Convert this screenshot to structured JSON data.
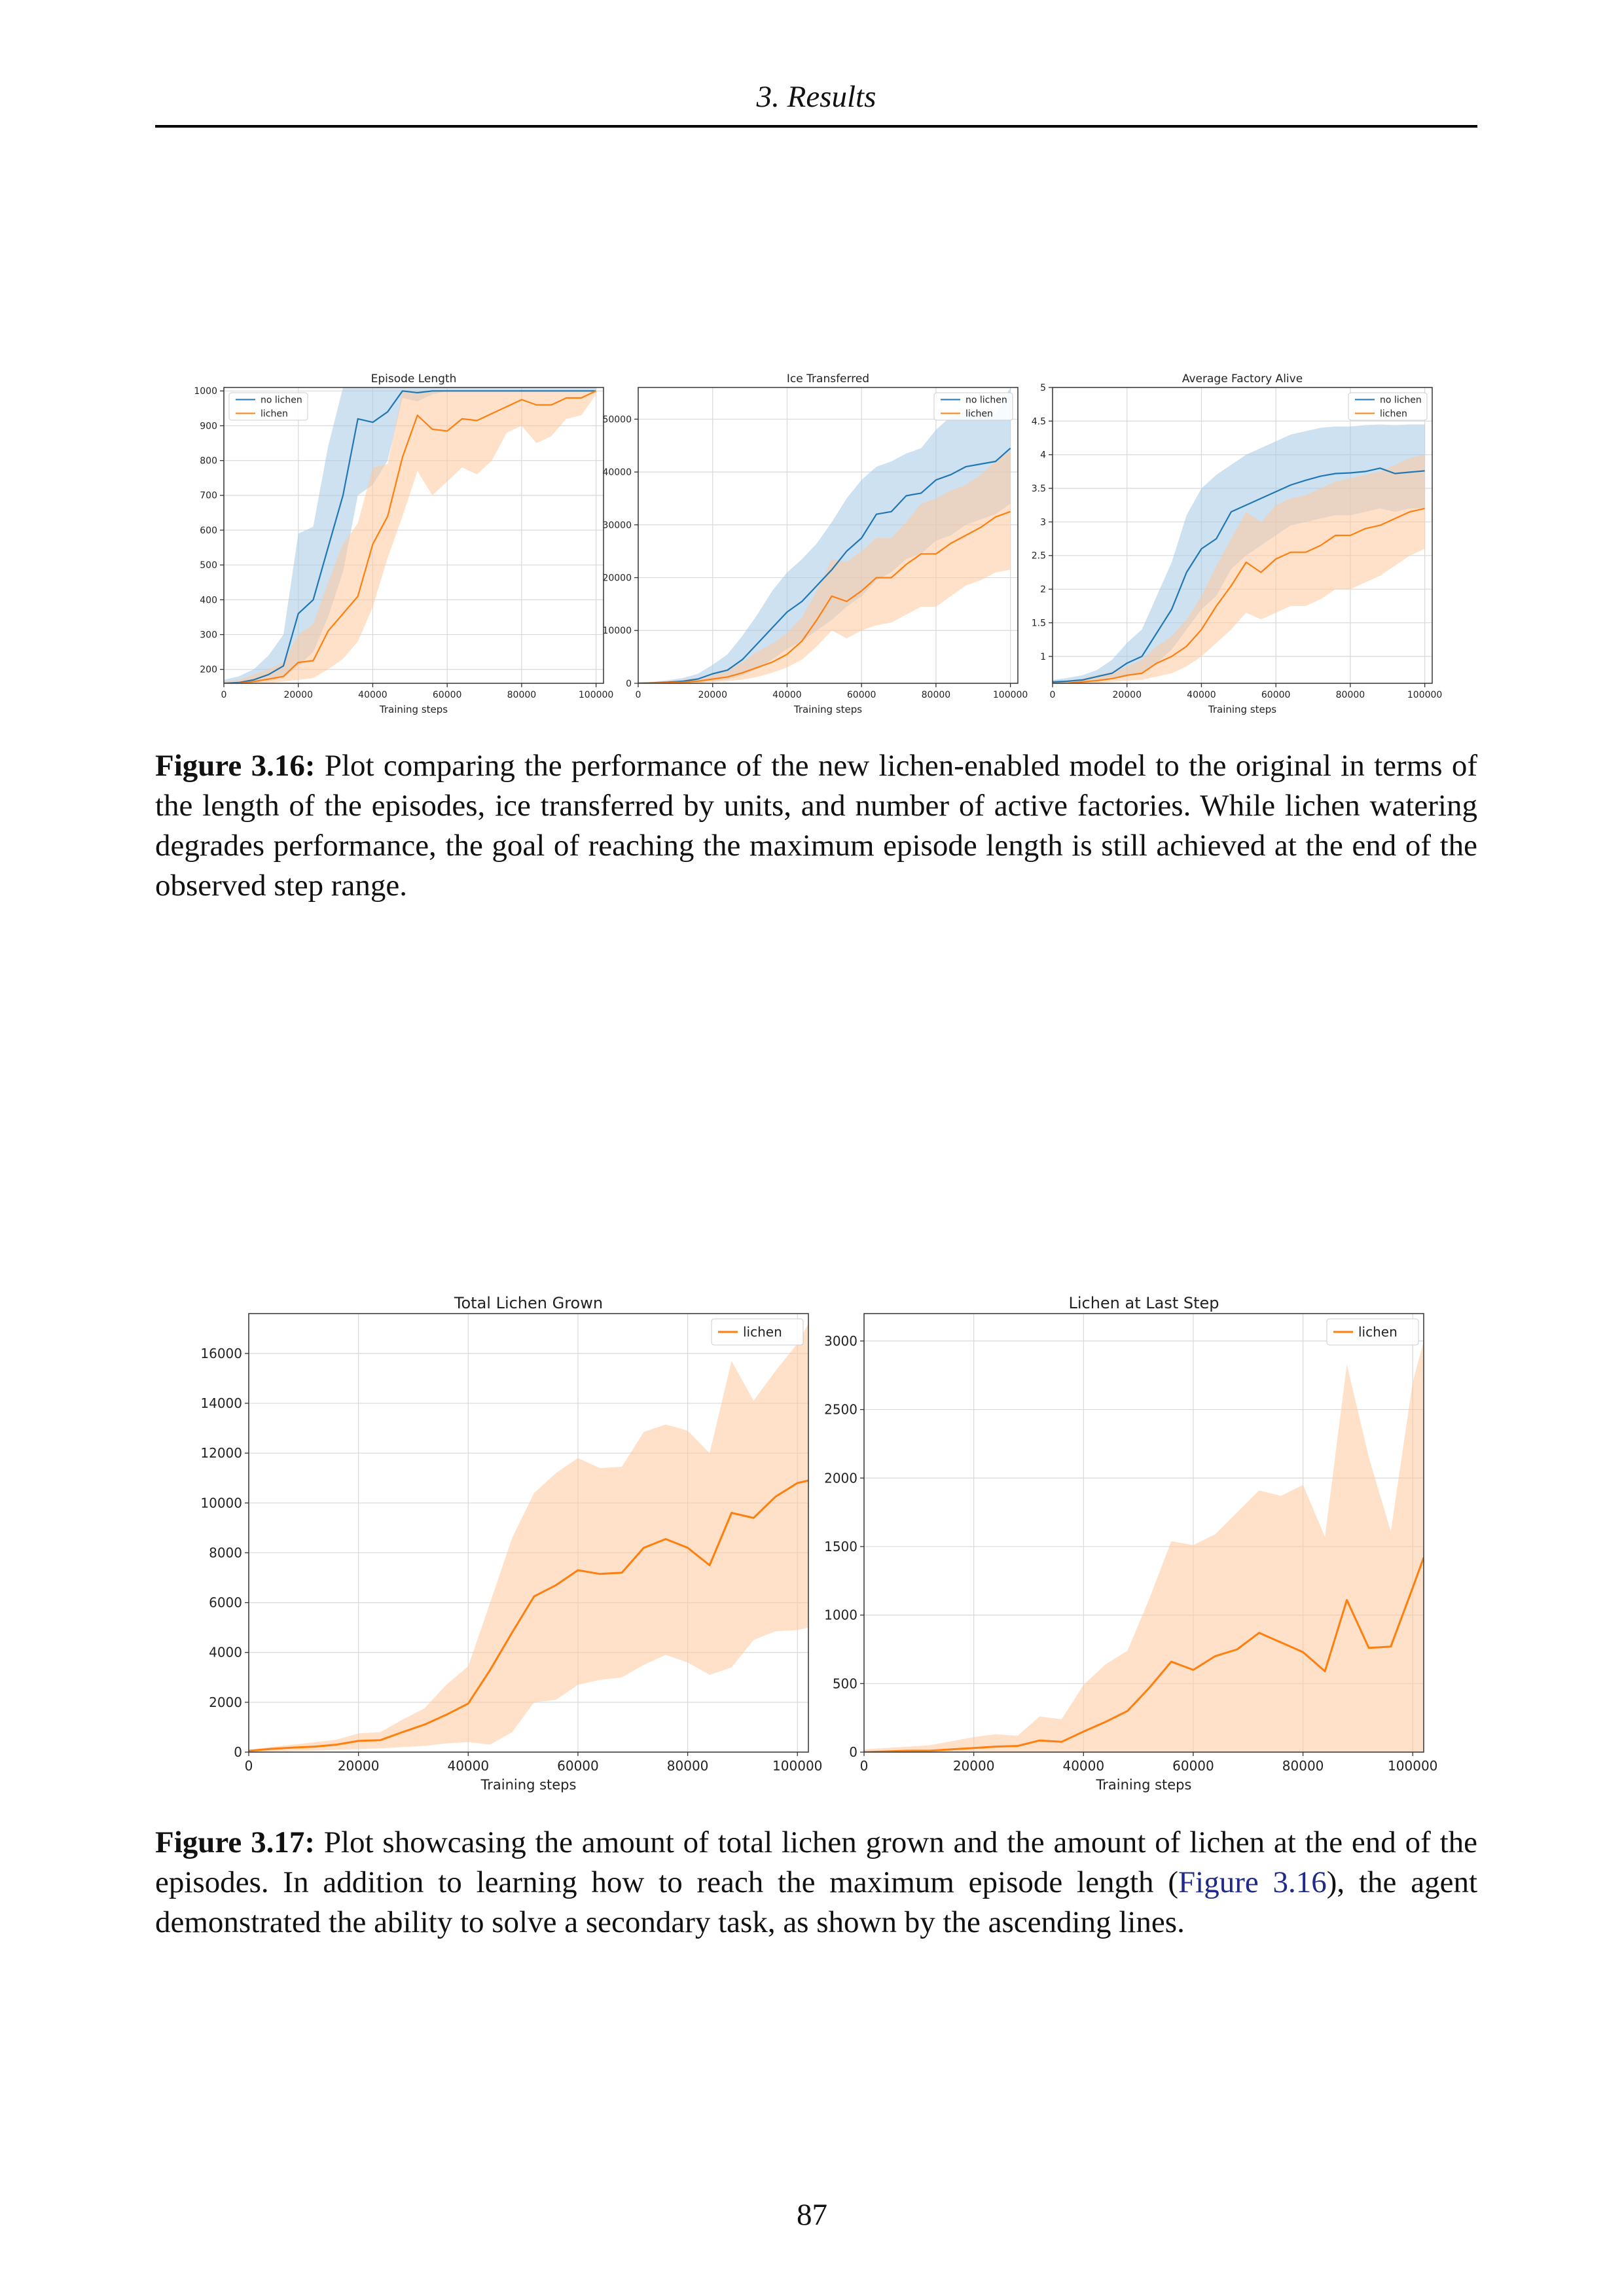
{
  "header": {
    "running_head": "3. Results"
  },
  "figures": [
    {
      "caption_label": "Figure 3.16:",
      "caption_text": "Plot comparing the performance of the new lichen-enabled model to the original in terms of the length of the episodes, ice transferred by units, and number of active factories. While lichen watering degrades performance, the goal of reaching the maximum episode length is still achieved at the end of the observed step range."
    },
    {
      "caption_label": "Figure 3.17:",
      "caption_text_before": "Plot showcasing the amount of total lichen grown and the amount of lichen at the end of the episodes. In addition to learning how to reach the maximum episode length (",
      "caption_ref": "Figure 3.16",
      "caption_text_after": "), the agent demonstrated the ability to solve a secondary task, as shown by the ascending lines."
    }
  ],
  "colors": {
    "no_lichen": "#1f77b4",
    "lichen": "#ff7f0e",
    "no_lichen_band": "#a6c8e3",
    "lichen_band": "#ffc99e"
  },
  "chart_data": [
    {
      "type": "line",
      "title": "Episode Length",
      "xlabel": "Training steps",
      "ylabel": "",
      "xlim": [
        0,
        102000
      ],
      "ylim": [
        160,
        1010
      ],
      "xticks": [
        0,
        20000,
        40000,
        60000,
        80000,
        100000
      ],
      "yticks": [
        200,
        300,
        400,
        500,
        600,
        700,
        800,
        900,
        1000
      ],
      "legend": "top-left",
      "grid": true,
      "x": [
        0,
        4000,
        8000,
        12000,
        16000,
        20000,
        24000,
        28000,
        32000,
        36000,
        40000,
        44000,
        48000,
        52000,
        56000,
        60000,
        64000,
        68000,
        72000,
        76000,
        80000,
        84000,
        88000,
        92000,
        96000,
        100000
      ],
      "series": [
        {
          "name": "no lichen",
          "values": [
            160,
            162,
            170,
            185,
            210,
            360,
            400,
            550,
            700,
            920,
            910,
            940,
            1000,
            995,
            1000,
            1000,
            1000,
            1000,
            1000,
            1000,
            1000,
            1000,
            1000,
            1000,
            1000,
            1000
          ],
          "lower": [
            160,
            160,
            162,
            165,
            175,
            210,
            250,
            350,
            480,
            700,
            730,
            800,
            980,
            970,
            990,
            1000,
            1000,
            1000,
            1000,
            1000,
            1000,
            1000,
            1000,
            1000,
            1000,
            1000
          ],
          "upper": [
            170,
            180,
            200,
            240,
            300,
            590,
            610,
            840,
            1010,
            1010,
            1010,
            1010,
            1010,
            1010,
            1010,
            1010,
            1010,
            1010,
            1010,
            1010,
            1010,
            1010,
            1010,
            1010,
            1010,
            1010
          ]
        },
        {
          "name": "lichen",
          "values": [
            160,
            160,
            165,
            172,
            180,
            220,
            225,
            310,
            360,
            410,
            560,
            640,
            810,
            930,
            890,
            885,
            920,
            915,
            935,
            955,
            975,
            960,
            960,
            980,
            980,
            1000
          ],
          "lower": [
            160,
            160,
            160,
            160,
            165,
            170,
            175,
            200,
            230,
            280,
            380,
            520,
            640,
            770,
            700,
            740,
            780,
            760,
            800,
            880,
            900,
            850,
            870,
            920,
            930,
            990
          ],
          "upper": [
            165,
            170,
            185,
            200,
            220,
            300,
            330,
            450,
            560,
            620,
            780,
            790,
            1000,
            1000,
            1000,
            1000,
            1000,
            1000,
            1000,
            1000,
            1000,
            1000,
            1000,
            1000,
            1000,
            1000
          ]
        }
      ]
    },
    {
      "type": "line",
      "title": "Ice Transferred",
      "xlabel": "Training steps",
      "ylabel": "",
      "xlim": [
        0,
        102000
      ],
      "ylim": [
        0,
        56000
      ],
      "xticks": [
        0,
        20000,
        40000,
        60000,
        80000,
        100000
      ],
      "yticks": [
        0,
        10000,
        20000,
        30000,
        40000,
        50000
      ],
      "legend": "top-right",
      "grid": true,
      "x": [
        0,
        4000,
        8000,
        12000,
        16000,
        20000,
        24000,
        28000,
        32000,
        36000,
        40000,
        44000,
        48000,
        52000,
        56000,
        60000,
        64000,
        68000,
        72000,
        76000,
        80000,
        84000,
        88000,
        92000,
        96000,
        100000
      ],
      "series": [
        {
          "name": "no lichen",
          "values": [
            0,
            100,
            200,
            400,
            800,
            1800,
            2500,
            4500,
            7500,
            10500,
            13500,
            15500,
            18500,
            21500,
            25000,
            27500,
            32000,
            32500,
            35500,
            36000,
            38500,
            39500,
            41000,
            41500,
            42000,
            44500
          ],
          "lower": [
            0,
            0,
            0,
            100,
            200,
            400,
            700,
            1500,
            2800,
            4500,
            6500,
            8000,
            10000,
            12000,
            14500,
            16500,
            19500,
            21000,
            23500,
            24500,
            27000,
            28000,
            30000,
            31000,
            32000,
            34000
          ],
          "upper": [
            200,
            300,
            600,
            1000,
            1800,
            3500,
            5500,
            9000,
            13000,
            17500,
            21000,
            23500,
            26500,
            30500,
            35000,
            38500,
            41000,
            42000,
            43500,
            44500,
            48000,
            50500,
            51500,
            52000,
            51000,
            56000
          ]
        },
        {
          "name": "lichen",
          "values": [
            0,
            50,
            100,
            200,
            400,
            800,
            1200,
            2000,
            3000,
            4000,
            5500,
            8000,
            12000,
            16500,
            15500,
            17500,
            20000,
            20000,
            22500,
            24500,
            24500,
            26500,
            28000,
            29500,
            31500,
            32500
          ],
          "lower": [
            0,
            0,
            0,
            0,
            100,
            200,
            400,
            700,
            1200,
            2000,
            3000,
            4500,
            7000,
            10000,
            8500,
            10000,
            11000,
            11500,
            13000,
            14500,
            14500,
            16500,
            18500,
            19500,
            21000,
            21500
          ],
          "upper": [
            100,
            200,
            400,
            700,
            1000,
            1500,
            2500,
            4000,
            6000,
            7500,
            9500,
            12500,
            17500,
            23500,
            23000,
            25000,
            27500,
            27500,
            30500,
            34000,
            35000,
            36500,
            37500,
            39500,
            42000,
            44000
          ]
        }
      ]
    },
    {
      "type": "line",
      "title": "Average Factory Alive",
      "xlabel": "Training steps",
      "ylabel": "",
      "xlim": [
        0,
        102000
      ],
      "ylim": [
        0.6,
        5.0
      ],
      "xticks": [
        0,
        20000,
        40000,
        60000,
        80000,
        100000
      ],
      "yticks": [
        1.0,
        1.5,
        2.0,
        2.5,
        3.0,
        3.5,
        4.0,
        4.5,
        5.0
      ],
      "legend": "top-right",
      "grid": true,
      "x": [
        0,
        4000,
        8000,
        12000,
        16000,
        20000,
        24000,
        28000,
        32000,
        36000,
        40000,
        44000,
        48000,
        52000,
        56000,
        60000,
        64000,
        68000,
        72000,
        76000,
        80000,
        84000,
        88000,
        92000,
        96000,
        100000
      ],
      "series": [
        {
          "name": "no lichen",
          "values": [
            0.62,
            0.63,
            0.65,
            0.7,
            0.75,
            0.9,
            1.0,
            1.35,
            1.7,
            2.25,
            2.6,
            2.75,
            3.15,
            3.25,
            3.35,
            3.45,
            3.55,
            3.62,
            3.68,
            3.72,
            3.73,
            3.75,
            3.8,
            3.72,
            3.74,
            3.76
          ],
          "lower": [
            0.6,
            0.6,
            0.62,
            0.64,
            0.66,
            0.7,
            0.75,
            0.9,
            1.1,
            1.4,
            1.7,
            1.9,
            2.3,
            2.5,
            2.65,
            2.8,
            2.95,
            3.0,
            3.05,
            3.1,
            3.1,
            3.15,
            3.2,
            3.15,
            3.2,
            3.2
          ],
          "upper": [
            0.65,
            0.68,
            0.72,
            0.8,
            0.95,
            1.2,
            1.4,
            1.9,
            2.4,
            3.1,
            3.5,
            3.7,
            3.85,
            4.0,
            4.1,
            4.2,
            4.3,
            4.35,
            4.4,
            4.42,
            4.42,
            4.44,
            4.45,
            4.44,
            4.45,
            4.45
          ]
        },
        {
          "name": "lichen",
          "values": [
            0.6,
            0.6,
            0.62,
            0.64,
            0.67,
            0.72,
            0.75,
            0.9,
            1.0,
            1.15,
            1.4,
            1.75,
            2.05,
            2.4,
            2.25,
            2.45,
            2.55,
            2.55,
            2.65,
            2.8,
            2.8,
            2.9,
            2.95,
            3.05,
            3.15,
            3.2
          ],
          "lower": [
            0.6,
            0.6,
            0.6,
            0.6,
            0.62,
            0.64,
            0.65,
            0.7,
            0.75,
            0.85,
            1.0,
            1.2,
            1.4,
            1.65,
            1.55,
            1.65,
            1.75,
            1.75,
            1.85,
            2.0,
            2.0,
            2.1,
            2.2,
            2.35,
            2.5,
            2.6
          ],
          "upper": [
            0.62,
            0.64,
            0.67,
            0.72,
            0.78,
            0.85,
            0.95,
            1.15,
            1.3,
            1.55,
            1.9,
            2.35,
            2.75,
            3.15,
            3.0,
            3.25,
            3.35,
            3.4,
            3.5,
            3.6,
            3.65,
            3.7,
            3.75,
            3.85,
            3.95,
            4.0
          ]
        }
      ]
    },
    {
      "type": "line",
      "title": "Total Lichen Grown",
      "xlabel": "Training steps",
      "ylabel": "",
      "xlim": [
        0,
        102000
      ],
      "ylim": [
        0,
        17600
      ],
      "xticks": [
        0,
        20000,
        40000,
        60000,
        80000,
        100000
      ],
      "yticks": [
        0,
        2000,
        4000,
        6000,
        8000,
        10000,
        12000,
        14000,
        16000
      ],
      "legend": "top-right",
      "grid": true,
      "x": [
        0,
        4000,
        8000,
        12000,
        16000,
        20000,
        24000,
        28000,
        32000,
        36000,
        40000,
        44000,
        48000,
        52000,
        56000,
        60000,
        64000,
        68000,
        72000,
        76000,
        80000,
        84000,
        88000,
        92000,
        96000,
        100000,
        102000
      ],
      "series": [
        {
          "name": "lichen",
          "values": [
            50,
            130,
            180,
            220,
            300,
            450,
            480,
            800,
            1100,
            1500,
            1950,
            3300,
            4800,
            6250,
            6700,
            7300,
            7150,
            7200,
            8200,
            8550,
            8200,
            7500,
            9600,
            9400,
            10250,
            10800,
            10900
          ],
          "lower": [
            0,
            20,
            40,
            60,
            90,
            120,
            150,
            200,
            250,
            350,
            400,
            300,
            800,
            2000,
            2100,
            2700,
            2900,
            3000,
            3500,
            3900,
            3600,
            3100,
            3400,
            4500,
            4850,
            4900,
            5000
          ],
          "upper": [
            100,
            200,
            300,
            400,
            500,
            750,
            800,
            1300,
            1750,
            2700,
            3450,
            6000,
            8600,
            10400,
            11200,
            11800,
            11400,
            11450,
            12850,
            13150,
            12900,
            12000,
            15700,
            14100,
            15300,
            16400,
            17200
          ]
        }
      ]
    },
    {
      "type": "line",
      "title": "Lichen at Last Step",
      "xlabel": "Training steps",
      "ylabel": "",
      "xlim": [
        0,
        102000
      ],
      "ylim": [
        0,
        3200
      ],
      "xticks": [
        0,
        20000,
        40000,
        60000,
        80000,
        100000
      ],
      "yticks": [
        0,
        500,
        1000,
        1500,
        2000,
        2500,
        3000
      ],
      "legend": "top-right",
      "grid": true,
      "x": [
        0,
        4000,
        8000,
        12000,
        16000,
        20000,
        24000,
        28000,
        32000,
        36000,
        40000,
        44000,
        48000,
        52000,
        56000,
        60000,
        64000,
        68000,
        72000,
        76000,
        80000,
        84000,
        88000,
        92000,
        96000,
        100000,
        102000
      ],
      "series": [
        {
          "name": "lichen",
          "values": [
            0,
            5,
            10,
            10,
            20,
            30,
            40,
            45,
            85,
            75,
            150,
            220,
            300,
            470,
            660,
            600,
            700,
            750,
            870,
            800,
            730,
            590,
            1110,
            760,
            770,
            1200,
            1420
          ],
          "lower": [
            0,
            0,
            0,
            0,
            0,
            0,
            0,
            0,
            0,
            0,
            0,
            0,
            0,
            0,
            0,
            0,
            0,
            0,
            0,
            0,
            0,
            0,
            0,
            0,
            0,
            0,
            0
          ],
          "upper": [
            20,
            30,
            40,
            50,
            80,
            110,
            130,
            120,
            260,
            240,
            490,
            640,
            740,
            1120,
            1540,
            1510,
            1590,
            1750,
            1910,
            1870,
            1950,
            1570,
            2830,
            2150,
            1610,
            2700,
            3000
          ]
        }
      ]
    }
  ],
  "page": {
    "number": "87"
  }
}
